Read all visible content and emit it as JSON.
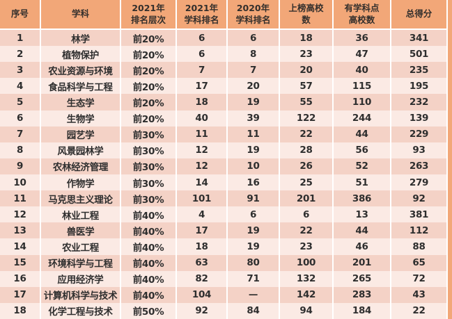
{
  "chart_data": {
    "type": "table",
    "columns": [
      {
        "id": "no",
        "label": "序号"
      },
      {
        "id": "subject",
        "label": "学科"
      },
      {
        "id": "tier-2021",
        "label": "2021年\n排名层次"
      },
      {
        "id": "rank-2021",
        "label": "2021年\n学科排名"
      },
      {
        "id": "rank-2020",
        "label": "2020年\n学科排名"
      },
      {
        "id": "listed-count",
        "label": "上榜高校\n数"
      },
      {
        "id": "offering-count",
        "label": "有学科点\n高校数"
      },
      {
        "id": "score",
        "label": "总得分"
      }
    ],
    "rows": [
      [
        "1",
        "林学",
        "前20%",
        "6",
        "6",
        "18",
        "36",
        "341"
      ],
      [
        "2",
        "植物保护",
        "前20%",
        "6",
        "8",
        "23",
        "47",
        "501"
      ],
      [
        "3",
        "农业资源与环境",
        "前20%",
        "7",
        "7",
        "20",
        "40",
        "235"
      ],
      [
        "4",
        "食品科学与工程",
        "前20%",
        "17",
        "20",
        "57",
        "115",
        "195"
      ],
      [
        "5",
        "生态学",
        "前20%",
        "18",
        "19",
        "55",
        "110",
        "232"
      ],
      [
        "6",
        "生物学",
        "前20%",
        "40",
        "39",
        "122",
        "244",
        "139"
      ],
      [
        "7",
        "园艺学",
        "前30%",
        "11",
        "11",
        "22",
        "44",
        "229"
      ],
      [
        "8",
        "风景园林学",
        "前30%",
        "12",
        "19",
        "28",
        "56",
        "93"
      ],
      [
        "9",
        "农林经济管理",
        "前30%",
        "12",
        "10",
        "26",
        "52",
        "263"
      ],
      [
        "10",
        "作物学",
        "前30%",
        "14",
        "16",
        "25",
        "51",
        "279"
      ],
      [
        "11",
        "马克思主义理论",
        "前30%",
        "101",
        "91",
        "201",
        "386",
        "92"
      ],
      [
        "12",
        "林业工程",
        "前40%",
        "4",
        "6",
        "6",
        "13",
        "381"
      ],
      [
        "13",
        "兽医学",
        "前40%",
        "17",
        "19",
        "22",
        "44",
        "112"
      ],
      [
        "14",
        "农业工程",
        "前40%",
        "18",
        "19",
        "23",
        "46",
        "88"
      ],
      [
        "15",
        "环境科学与工程",
        "前40%",
        "63",
        "80",
        "100",
        "201",
        "65"
      ],
      [
        "16",
        "应用经济学",
        "前40%",
        "82",
        "71",
        "132",
        "265",
        "72"
      ],
      [
        "17",
        "计算机科学与技术",
        "前40%",
        "104",
        "—",
        "142",
        "283",
        "43"
      ],
      [
        "18",
        "化学工程与技术",
        "前50%",
        "92",
        "84",
        "94",
        "184",
        "22"
      ]
    ]
  },
  "colors": {
    "header_bg": "#F2A778",
    "header_text": "#332F2C",
    "row_odd": "#F4D2C6",
    "row_even": "#FBEAE4",
    "text": "#2E2E2E",
    "grid": "#FFFFFF"
  }
}
